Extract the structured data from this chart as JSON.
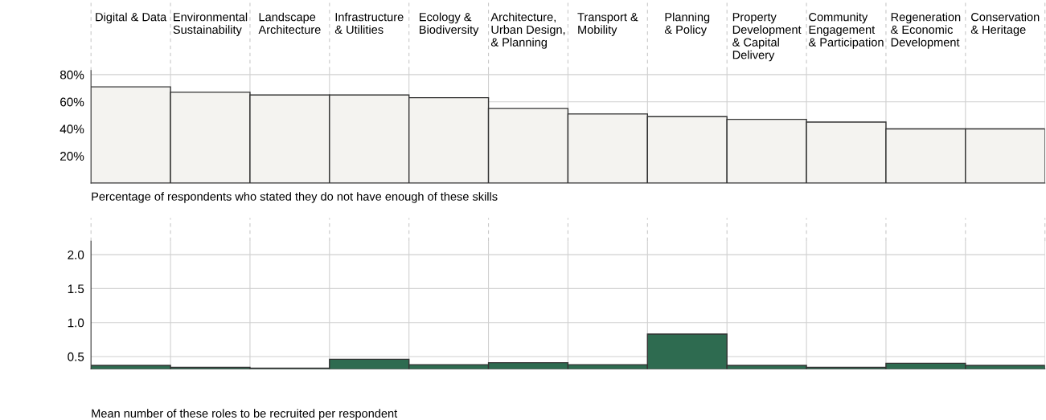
{
  "chart_data": [
    {
      "type": "bar",
      "categories": [
        "Digital & Data",
        "Environmental\nSustainability",
        "Landscape\nArchitecture",
        "Infrastructure\n& Utilities",
        "Ecology &\nBiodiversity",
        "Architecture,\nUrban Design,\n& Planning",
        "Transport &\nMobility",
        "Planning\n& Policy",
        "Property\nDevelopment\n& Capital\nDelivery",
        "Community\nEngagement\n& Participation",
        "Regeneration\n& Economic\nDevelopment",
        "Conservation\n& Heritage"
      ],
      "values": [
        71,
        67,
        65,
        65,
        63,
        55,
        51,
        49,
        47,
        45,
        40,
        40
      ],
      "color": "#f4f3f0",
      "ylim": [
        0,
        83
      ],
      "yticks": [
        {
          "value": 20,
          "label": "20%"
        },
        {
          "value": 40,
          "label": "40%"
        },
        {
          "value": 60,
          "label": "60%"
        },
        {
          "value": 80,
          "label": "80%"
        }
      ],
      "xlabel": "Percentage of respondents who stated they do not have enough of these skills",
      "grid": true
    },
    {
      "type": "bar",
      "categories": [
        null,
        null,
        null,
        null,
        null,
        null,
        null,
        null,
        null,
        null,
        null,
        null
      ],
      "values": [
        0.37,
        0.34,
        0.33,
        0.46,
        0.38,
        0.41,
        0.38,
        0.83,
        0.37,
        0.34,
        0.4,
        0.37
      ],
      "color": "#2e6b50",
      "ylim": [
        0.32,
        2.2
      ],
      "yticks": [
        0.5,
        {
          "value": 1,
          "label": "1.0"
        },
        1.5,
        {
          "value": 2,
          "label": "2.0"
        }
      ],
      "xlabel": "Mean number of these roles to be recruited per respondent",
      "grid": true,
      "tick_labels": "y"
    }
  ]
}
